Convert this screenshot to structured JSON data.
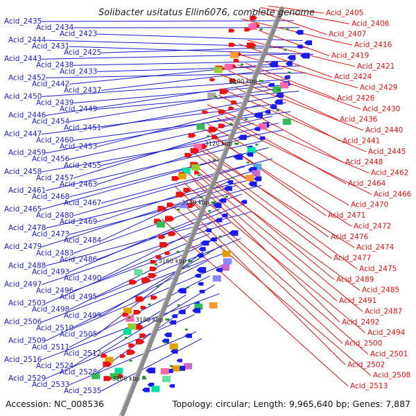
{
  "title": "Solibacter usitatus Ellin6076, complete genome",
  "accession": "Accession: NC_008536",
  "topology": "Topology: circular; Length: 9,965,640 bp; Genes: 7,887",
  "colors": {
    "left_genes": "#1a1acc",
    "right_genes": "#e01010",
    "backbone": "#8c8c8c",
    "tick": "#1e8c1e"
  },
  "ticks": [
    {
      "label": "3100 kbp",
      "t": 0.175
    },
    {
      "label": "3120 kbp",
      "t": 0.328
    },
    {
      "label": "3140 kbp",
      "t": 0.472
    },
    {
      "label": "3160 kbp",
      "t": 0.615
    },
    {
      "label": "3180 kbp",
      "t": 0.758
    },
    {
      "label": "3200 kbp",
      "t": 0.902
    }
  ],
  "left_labels": [
    {
      "name": "Acid_2435",
      "t": 0.02
    },
    {
      "name": "Acid_2434",
      "t": 0.03
    },
    {
      "name": "Acid_2423",
      "t": 0.055
    },
    {
      "name": "Acid_2444",
      "t": 0.065
    },
    {
      "name": "Acid_2431",
      "t": 0.075
    },
    {
      "name": "Acid_2425",
      "t": 0.085
    },
    {
      "name": "Acid_2443",
      "t": 0.095
    },
    {
      "name": "Acid_2438",
      "t": 0.105
    },
    {
      "name": "Acid_2433",
      "t": 0.11
    },
    {
      "name": "Acid_2452",
      "t": 0.12
    },
    {
      "name": "Acid_2442",
      "t": 0.125
    },
    {
      "name": "Acid_2437",
      "t": 0.13
    },
    {
      "name": "Acid_2450",
      "t": 0.15
    },
    {
      "name": "Acid_2439",
      "t": 0.155
    },
    {
      "name": "Acid_2449",
      "t": 0.165
    },
    {
      "name": "Acid_2446",
      "t": 0.17
    },
    {
      "name": "Acid_2454",
      "t": 0.18
    },
    {
      "name": "Acid_2451",
      "t": 0.19
    },
    {
      "name": "Acid_2447",
      "t": 0.2
    },
    {
      "name": "Acid_2460",
      "t": 0.215
    },
    {
      "name": "Acid_2453",
      "t": 0.225
    },
    {
      "name": "Acid_2459",
      "t": 0.235
    },
    {
      "name": "Acid_2456",
      "t": 0.24
    },
    {
      "name": "Acid_2455",
      "t": 0.25
    },
    {
      "name": "Acid_2458",
      "t": 0.26
    },
    {
      "name": "Acid_2457",
      "t": 0.27
    },
    {
      "name": "Acid_2463",
      "t": 0.29
    },
    {
      "name": "Acid_2461",
      "t": 0.3
    },
    {
      "name": "Acid_2468",
      "t": 0.31
    },
    {
      "name": "Acid_2467",
      "t": 0.33
    },
    {
      "name": "Acid_2465",
      "t": 0.345
    },
    {
      "name": "Acid_2480",
      "t": 0.37
    },
    {
      "name": "Acid_2469",
      "t": 0.375
    },
    {
      "name": "Acid_2478",
      "t": 0.385
    },
    {
      "name": "Acid_2473",
      "t": 0.395
    },
    {
      "name": "Acid_2484",
      "t": 0.41
    },
    {
      "name": "Acid_2479",
      "t": 0.415
    },
    {
      "name": "Acid_2483",
      "t": 0.43
    },
    {
      "name": "Acid_2486",
      "t": 0.445
    },
    {
      "name": "Acid_2488",
      "t": 0.46
    },
    {
      "name": "Acid_2493",
      "t": 0.48
    },
    {
      "name": "Acid_2490",
      "t": 0.49
    },
    {
      "name": "Acid_2497",
      "t": 0.5
    },
    {
      "name": "Acid_2496",
      "t": 0.515
    },
    {
      "name": "Acid_2495",
      "t": 0.525
    },
    {
      "name": "Acid_2503",
      "t": 0.54
    },
    {
      "name": "Acid_2498",
      "t": 0.545
    },
    {
      "name": "Acid_2499",
      "t": 0.555
    },
    {
      "name": "Acid_2506",
      "t": 0.565
    },
    {
      "name": "Acid_2510",
      "t": 0.58
    },
    {
      "name": "Acid_2505",
      "t": 0.585
    },
    {
      "name": "Acid_2509",
      "t": 0.6
    },
    {
      "name": "Acid_2511",
      "t": 0.63
    },
    {
      "name": "Acid_2512",
      "t": 0.645
    },
    {
      "name": "Acid_2516",
      "t": 0.66
    },
    {
      "name": "Acid_2524",
      "t": 0.69
    },
    {
      "name": "Acid_2528",
      "t": 0.71
    },
    {
      "name": "Acid_2529",
      "t": 0.725
    },
    {
      "name": "Acid_2533",
      "t": 0.76
    },
    {
      "name": "Acid_2535",
      "t": 0.77
    }
  ],
  "right_labels": [
    {
      "name": "Acid_2405",
      "t": 0.01
    },
    {
      "name": "Acid_2406",
      "t": 0.02
    },
    {
      "name": "Acid_2407",
      "t": 0.03
    },
    {
      "name": "Acid_2416",
      "t": 0.06
    },
    {
      "name": "Acid_2419",
      "t": 0.07
    },
    {
      "name": "Acid_2421",
      "t": 0.1
    },
    {
      "name": "Acid_2424",
      "t": 0.115
    },
    {
      "name": "Acid_2429",
      "t": 0.14
    },
    {
      "name": "Acid_2426",
      "t": 0.15
    },
    {
      "name": "Acid_2430",
      "t": 0.16
    },
    {
      "name": "Acid_2436",
      "t": 0.18
    },
    {
      "name": "Acid_2440",
      "t": 0.195
    },
    {
      "name": "Acid_2441",
      "t": 0.21
    },
    {
      "name": "Acid_2445",
      "t": 0.225
    },
    {
      "name": "Acid_2448",
      "t": 0.24
    },
    {
      "name": "Acid_2462",
      "t": 0.27
    },
    {
      "name": "Acid_2464",
      "t": 0.28
    },
    {
      "name": "Acid_2466",
      "t": 0.29
    },
    {
      "name": "Acid_2470",
      "t": 0.31
    },
    {
      "name": "Acid_2471",
      "t": 0.32
    },
    {
      "name": "Acid_2472",
      "t": 0.335
    },
    {
      "name": "Acid_2476",
      "t": 0.365
    },
    {
      "name": "Acid_2474",
      "t": 0.37
    },
    {
      "name": "Acid_2477",
      "t": 0.38
    },
    {
      "name": "Acid_2475",
      "t": 0.385
    },
    {
      "name": "Acid_2489",
      "t": 0.41
    },
    {
      "name": "Acid_2485",
      "t": 0.415
    },
    {
      "name": "Acid_2491",
      "t": 0.425
    },
    {
      "name": "Acid_2487",
      "t": 0.43
    },
    {
      "name": "Acid_2492",
      "t": 0.44
    },
    {
      "name": "Acid_2494",
      "t": 0.455
    },
    {
      "name": "Acid_2500",
      "t": 0.47
    },
    {
      "name": "Acid_2501",
      "t": 0.485
    },
    {
      "name": "Acid_2502",
      "t": 0.5
    },
    {
      "name": "Acid_2508",
      "t": 0.515
    },
    {
      "name": "Acid_2513",
      "t": 0.55
    }
  ]
}
